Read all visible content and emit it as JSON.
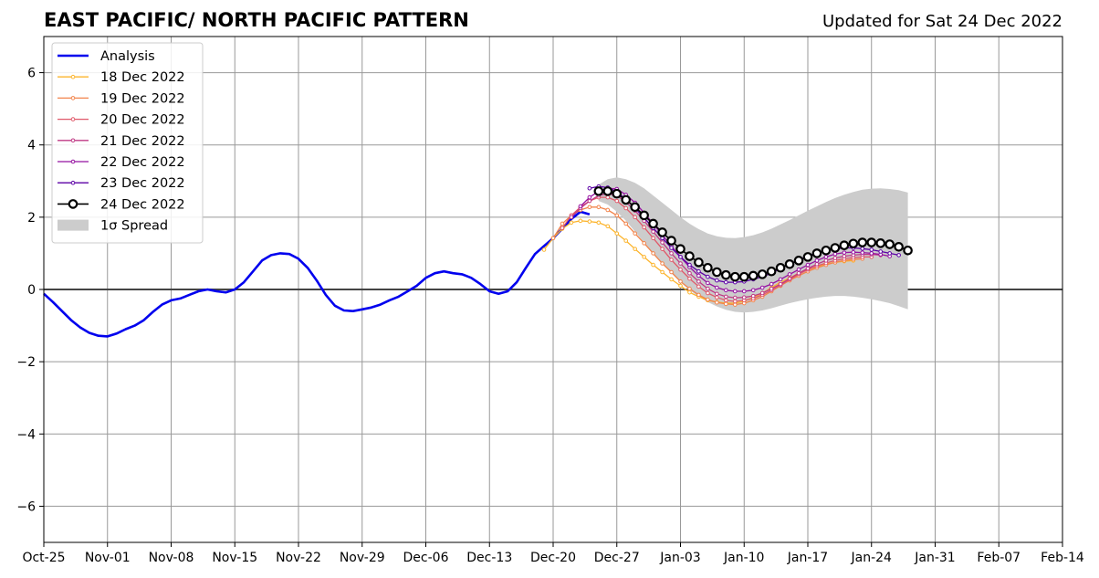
{
  "title": "EAST PACIFIC/ NORTH PACIFIC PATTERN",
  "subtitle": "Updated for Sat 24 Dec 2022",
  "chart_data": {
    "type": "line",
    "title": "EAST PACIFIC/ NORTH PACIFIC PATTERN",
    "subtitle": "Updated for Sat 24 Dec 2022",
    "xlabel": "",
    "ylabel": "",
    "x_unit": "days since Oct-25 2022",
    "xlim": [
      0,
      112
    ],
    "ylim": [
      -7,
      7
    ],
    "grid": true,
    "legend_position": "top-left",
    "x_ticks": [
      {
        "x": 0,
        "label": "Oct-25"
      },
      {
        "x": 7,
        "label": "Nov-01"
      },
      {
        "x": 14,
        "label": "Nov-08"
      },
      {
        "x": 21,
        "label": "Nov-15"
      },
      {
        "x": 28,
        "label": "Nov-22"
      },
      {
        "x": 35,
        "label": "Nov-29"
      },
      {
        "x": 42,
        "label": "Dec-06"
      },
      {
        "x": 49,
        "label": "Dec-13"
      },
      {
        "x": 56,
        "label": "Dec-20"
      },
      {
        "x": 63,
        "label": "Dec-27"
      },
      {
        "x": 70,
        "label": "Jan-03"
      },
      {
        "x": 77,
        "label": "Jan-10"
      },
      {
        "x": 84,
        "label": "Jan-17"
      },
      {
        "x": 91,
        "label": "Jan-24"
      },
      {
        "x": 98,
        "label": "Jan-31"
      },
      {
        "x": 105,
        "label": "Feb-07"
      },
      {
        "x": 112,
        "label": "Feb-14"
      }
    ],
    "y_ticks": [
      {
        "y": 6,
        "label": "6"
      },
      {
        "y": 4,
        "label": "4"
      },
      {
        "y": 2,
        "label": "2"
      },
      {
        "y": 0,
        "label": "0"
      },
      {
        "y": -2,
        "label": "−2"
      },
      {
        "y": -4,
        "label": "−4"
      },
      {
        "y": -6,
        "label": "−6"
      }
    ],
    "legend": [
      {
        "label": "Analysis",
        "kind": "thick-line",
        "color": "#0000ee"
      },
      {
        "label": "18 Dec 2022",
        "kind": "small-marker",
        "color": "#fcb42c"
      },
      {
        "label": "19 Dec 2022",
        "kind": "small-marker",
        "color": "#f2844b"
      },
      {
        "label": "20 Dec 2022",
        "kind": "small-marker",
        "color": "#e0596a"
      },
      {
        "label": "21 Dec 2022",
        "kind": "small-marker",
        "color": "#bf3984"
      },
      {
        "label": "22 Dec 2022",
        "kind": "small-marker",
        "color": "#9511a1"
      },
      {
        "label": "23 Dec 2022",
        "kind": "small-marker",
        "color": "#5c01a6"
      },
      {
        "label": "24 Dec 2022",
        "kind": "big-marker",
        "color": "#000000"
      },
      {
        "label": "1σ Spread",
        "kind": "patch",
        "color": "#cccccc"
      }
    ],
    "analysis": {
      "name": "Analysis",
      "color": "#0000ee",
      "x": [
        0,
        1,
        2,
        3,
        4,
        5,
        6,
        7,
        8,
        9,
        10,
        11,
        12,
        13,
        14,
        15,
        16,
        17,
        18,
        19,
        20,
        21,
        22,
        23,
        24,
        25,
        26,
        27,
        28,
        29,
        30,
        31,
        32,
        33,
        34,
        35,
        36,
        37,
        38,
        39,
        40,
        41,
        42,
        43,
        44,
        45,
        46,
        47,
        48,
        49,
        50,
        51,
        52,
        53,
        54,
        55,
        56,
        57,
        58,
        59,
        60
      ],
      "y": [
        -0.12,
        -0.35,
        -0.6,
        -0.85,
        -1.05,
        -1.2,
        -1.28,
        -1.3,
        -1.22,
        -1.1,
        -1.0,
        -0.85,
        -0.62,
        -0.42,
        -0.3,
        -0.25,
        -0.15,
        -0.05,
        0.0,
        -0.05,
        -0.08,
        0.0,
        0.2,
        0.5,
        0.8,
        0.95,
        1.0,
        0.98,
        0.85,
        0.6,
        0.25,
        -0.15,
        -0.45,
        -0.58,
        -0.6,
        -0.55,
        -0.5,
        -0.42,
        -0.3,
        -0.2,
        -0.05,
        0.1,
        0.32,
        0.45,
        0.5,
        0.45,
        0.42,
        0.32,
        0.15,
        -0.05,
        -0.12,
        -0.05,
        0.2,
        0.6,
        0.98,
        1.2,
        1.42,
        1.68,
        1.95,
        2.15,
        2.08
      ]
    },
    "forecasts": [
      {
        "name": "18 Dec 2022",
        "color": "#fcb42c",
        "x": [
          55,
          56,
          57,
          58,
          59,
          60,
          61,
          62,
          63,
          64,
          65,
          66,
          67,
          68,
          69,
          70,
          71,
          72,
          73,
          74,
          75,
          76,
          77,
          78,
          79,
          80,
          81,
          82,
          83,
          84,
          85,
          86,
          87,
          88,
          89
        ],
        "y": [
          1.1,
          1.42,
          1.68,
          1.85,
          1.9,
          1.88,
          1.85,
          1.75,
          1.55,
          1.35,
          1.12,
          0.9,
          0.68,
          0.48,
          0.28,
          0.1,
          -0.08,
          -0.2,
          -0.3,
          -0.35,
          -0.38,
          -0.38,
          -0.32,
          -0.22,
          -0.1,
          0.05,
          0.2,
          0.32,
          0.45,
          0.55,
          0.63,
          0.7,
          0.75,
          0.78,
          0.8
        ]
      },
      {
        "name": "19 Dec 2022",
        "color": "#f2844b",
        "x": [
          56,
          57,
          58,
          59,
          60,
          61,
          62,
          63,
          64,
          65,
          66,
          67,
          68,
          69,
          70,
          71,
          72,
          73,
          74,
          75,
          76,
          77,
          78,
          79,
          80,
          81,
          82,
          83,
          84,
          85,
          86,
          87,
          88,
          89,
          90
        ],
        "y": [
          1.42,
          1.82,
          2.05,
          2.2,
          2.28,
          2.28,
          2.2,
          2.05,
          1.82,
          1.55,
          1.28,
          1.0,
          0.72,
          0.48,
          0.22,
          0.02,
          -0.15,
          -0.28,
          -0.36,
          -0.4,
          -0.42,
          -0.38,
          -0.3,
          -0.2,
          -0.05,
          0.1,
          0.25,
          0.38,
          0.5,
          0.6,
          0.68,
          0.75,
          0.8,
          0.83,
          0.85
        ]
      },
      {
        "name": "20 Dec 2022",
        "color": "#e0596a",
        "x": [
          57,
          58,
          59,
          60,
          61,
          62,
          63,
          64,
          65,
          66,
          67,
          68,
          69,
          70,
          71,
          72,
          73,
          74,
          75,
          76,
          77,
          78,
          79,
          80,
          81,
          82,
          83,
          84,
          85,
          86,
          87,
          88,
          89,
          90,
          91
        ],
        "y": [
          1.7,
          2.05,
          2.28,
          2.45,
          2.55,
          2.55,
          2.45,
          2.25,
          2.0,
          1.72,
          1.42,
          1.12,
          0.82,
          0.55,
          0.3,
          0.08,
          -0.1,
          -0.22,
          -0.3,
          -0.33,
          -0.3,
          -0.25,
          -0.15,
          -0.02,
          0.12,
          0.28,
          0.42,
          0.55,
          0.65,
          0.73,
          0.8,
          0.85,
          0.88,
          0.9,
          0.9
        ]
      },
      {
        "name": "21 Dec 2022",
        "color": "#bf3984",
        "x": [
          58,
          59,
          60,
          61,
          62,
          63,
          64,
          65,
          66,
          67,
          68,
          69,
          70,
          71,
          72,
          73,
          74,
          75,
          76,
          77,
          78,
          79,
          80,
          81,
          82,
          83,
          84,
          85,
          86,
          87,
          88,
          89,
          90,
          91,
          92
        ],
        "y": [
          2.0,
          2.25,
          2.45,
          2.6,
          2.65,
          2.6,
          2.42,
          2.18,
          1.9,
          1.6,
          1.3,
          1.0,
          0.72,
          0.45,
          0.22,
          0.02,
          -0.12,
          -0.2,
          -0.23,
          -0.22,
          -0.18,
          -0.1,
          0.02,
          0.15,
          0.3,
          0.45,
          0.58,
          0.7,
          0.8,
          0.87,
          0.92,
          0.95,
          0.97,
          0.97,
          0.95
        ]
      },
      {
        "name": "22 Dec 2022",
        "color": "#9511a1",
        "x": [
          59,
          60,
          61,
          62,
          63,
          64,
          65,
          66,
          67,
          68,
          69,
          70,
          71,
          72,
          73,
          74,
          75,
          76,
          77,
          78,
          79,
          80,
          81,
          82,
          83,
          84,
          85,
          86,
          87,
          88,
          89,
          90,
          91,
          92,
          93
        ],
        "y": [
          2.3,
          2.55,
          2.72,
          2.8,
          2.78,
          2.62,
          2.4,
          2.12,
          1.82,
          1.5,
          1.2,
          0.9,
          0.62,
          0.38,
          0.18,
          0.05,
          -0.02,
          -0.05,
          -0.05,
          -0.02,
          0.05,
          0.15,
          0.28,
          0.42,
          0.55,
          0.68,
          0.8,
          0.9,
          0.98,
          1.02,
          1.03,
          1.02,
          1.0,
          0.97,
          0.92
        ]
      },
      {
        "name": "23 Dec 2022",
        "color": "#5c01a6",
        "x": [
          60,
          61,
          62,
          63,
          64,
          65,
          66,
          67,
          68,
          69,
          70,
          71,
          72,
          73,
          74,
          75,
          76,
          77,
          78,
          79,
          80,
          81,
          82,
          83,
          84,
          85,
          86,
          87,
          88,
          89,
          90,
          91,
          92,
          93,
          94
        ],
        "y": [
          2.8,
          2.85,
          2.82,
          2.7,
          2.5,
          2.25,
          1.98,
          1.7,
          1.42,
          1.15,
          0.9,
          0.68,
          0.5,
          0.35,
          0.25,
          0.2,
          0.2,
          0.22,
          0.28,
          0.35,
          0.45,
          0.58,
          0.7,
          0.82,
          0.93,
          1.02,
          1.08,
          1.12,
          1.15,
          1.15,
          1.13,
          1.1,
          1.05,
          1.0,
          0.95
        ]
      },
      {
        "name": "24 Dec 2022",
        "color": "#000000",
        "x": [
          61,
          62,
          63,
          64,
          65,
          66,
          67,
          68,
          69,
          70,
          71,
          72,
          73,
          74,
          75,
          76,
          77,
          78,
          79,
          80,
          81,
          82,
          83,
          84,
          85,
          86,
          87,
          88,
          89,
          90,
          91,
          92,
          93,
          94,
          95
        ],
        "y": [
          2.72,
          2.72,
          2.65,
          2.48,
          2.28,
          2.05,
          1.82,
          1.58,
          1.35,
          1.12,
          0.92,
          0.75,
          0.6,
          0.48,
          0.4,
          0.35,
          0.35,
          0.38,
          0.42,
          0.5,
          0.6,
          0.7,
          0.8,
          0.9,
          1.0,
          1.08,
          1.15,
          1.22,
          1.27,
          1.3,
          1.3,
          1.28,
          1.25,
          1.18,
          1.08
        ]
      }
    ],
    "spread": {
      "name": "1σ Spread",
      "color": "#cccccc",
      "x": [
        61,
        62,
        63,
        64,
        65,
        66,
        67,
        68,
        69,
        70,
        71,
        72,
        73,
        74,
        75,
        76,
        77,
        78,
        79,
        80,
        81,
        82,
        83,
        84,
        85,
        86,
        87,
        88,
        89,
        90,
        91,
        92,
        93,
        94,
        95
      ],
      "upper": [
        2.9,
        3.05,
        3.1,
        3.05,
        2.95,
        2.8,
        2.6,
        2.4,
        2.2,
        2.0,
        1.82,
        1.67,
        1.55,
        1.47,
        1.43,
        1.42,
        1.45,
        1.5,
        1.58,
        1.68,
        1.8,
        1.92,
        2.05,
        2.18,
        2.3,
        2.42,
        2.53,
        2.62,
        2.7,
        2.76,
        2.79,
        2.8,
        2.78,
        2.75,
        2.68
      ],
      "lower": [
        2.45,
        2.35,
        2.15,
        1.9,
        1.6,
        1.3,
        1.0,
        0.72,
        0.45,
        0.2,
        -0.02,
        -0.2,
        -0.35,
        -0.47,
        -0.56,
        -0.62,
        -0.64,
        -0.62,
        -0.58,
        -0.52,
        -0.45,
        -0.38,
        -0.32,
        -0.27,
        -0.23,
        -0.2,
        -0.18,
        -0.18,
        -0.2,
        -0.23,
        -0.27,
        -0.32,
        -0.38,
        -0.46,
        -0.55
      ]
    }
  }
}
